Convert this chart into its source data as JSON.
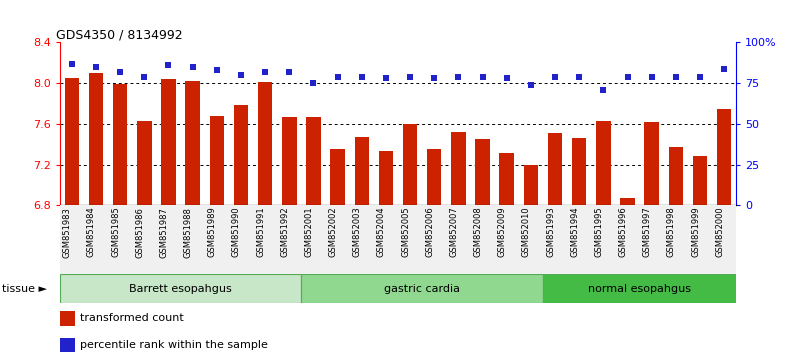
{
  "title": "GDS4350 / 8134992",
  "samples": [
    "GSM851983",
    "GSM851984",
    "GSM851985",
    "GSM851986",
    "GSM851987",
    "GSM851988",
    "GSM851989",
    "GSM851990",
    "GSM851991",
    "GSM851992",
    "GSM852001",
    "GSM852002",
    "GSM852003",
    "GSM852004",
    "GSM852005",
    "GSM852006",
    "GSM852007",
    "GSM852008",
    "GSM852009",
    "GSM852010",
    "GSM851993",
    "GSM851994",
    "GSM851995",
    "GSM851996",
    "GSM851997",
    "GSM851998",
    "GSM851999",
    "GSM852000"
  ],
  "bar_values": [
    8.05,
    8.1,
    7.99,
    7.63,
    8.04,
    8.02,
    7.68,
    7.79,
    8.01,
    7.67,
    7.67,
    7.35,
    7.47,
    7.33,
    7.6,
    7.35,
    7.52,
    7.45,
    7.31,
    7.2,
    7.51,
    7.46,
    7.63,
    6.87,
    7.62,
    7.37,
    7.28,
    7.75
  ],
  "dot_values": [
    87,
    85,
    82,
    79,
    86,
    85,
    83,
    80,
    82,
    82,
    75,
    79,
    79,
    78,
    79,
    78,
    79,
    79,
    78,
    74,
    79,
    79,
    71,
    79,
    79,
    79,
    79,
    84
  ],
  "groups": [
    {
      "label": "Barrett esopahgus",
      "start": 0,
      "end": 10,
      "color": "#c8e6c8"
    },
    {
      "label": "gastric cardia",
      "start": 10,
      "end": 20,
      "color": "#90d890"
    },
    {
      "label": "normal esopahgus",
      "start": 20,
      "end": 28,
      "color": "#44bb44"
    }
  ],
  "ylim_left": [
    6.8,
    8.4
  ],
  "ylim_right": [
    0,
    100
  ],
  "yticks_left": [
    6.8,
    7.2,
    7.6,
    8.0,
    8.4
  ],
  "yticks_right": [
    0,
    25,
    50,
    75,
    100
  ],
  "ytick_labels_right": [
    "0",
    "25",
    "50",
    "75",
    "100%"
  ],
  "grid_values": [
    8.0,
    7.6,
    7.2
  ],
  "bar_color": "#cc2200",
  "dot_color": "#2222cc",
  "bar_bottom": 6.8,
  "bg_color": "#f0f0f0",
  "legend_items": [
    {
      "color": "#cc2200",
      "label": "transformed count"
    },
    {
      "color": "#2222cc",
      "label": "percentile rank within the sample"
    }
  ]
}
